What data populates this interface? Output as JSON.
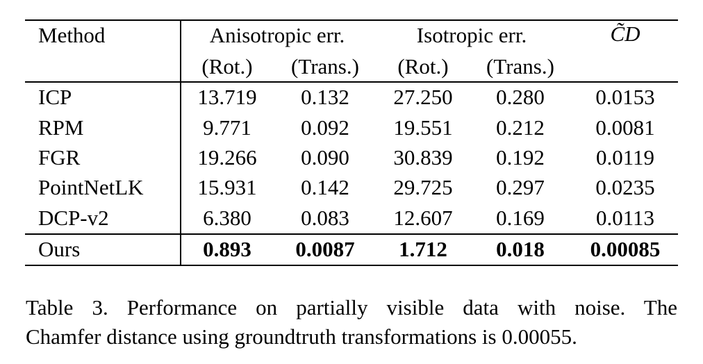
{
  "table": {
    "headers": {
      "method": "Method",
      "anisotropic": "Anisotropic err.",
      "isotropic": "Isotropic err.",
      "cd": "C̃D",
      "rot": "(Rot.)",
      "trans": "(Trans.)"
    },
    "rows": [
      {
        "method": "ICP",
        "aniso_rot": "13.719",
        "aniso_trans": "0.132",
        "iso_rot": "27.250",
        "iso_trans": "0.280",
        "cd": "0.0153"
      },
      {
        "method": "RPM",
        "aniso_rot": "9.771",
        "aniso_trans": "0.092",
        "iso_rot": "19.551",
        "iso_trans": "0.212",
        "cd": "0.0081"
      },
      {
        "method": "FGR",
        "aniso_rot": "19.266",
        "aniso_trans": "0.090",
        "iso_rot": "30.839",
        "iso_trans": "0.192",
        "cd": "0.0119"
      },
      {
        "method": "PointNetLK",
        "aniso_rot": "15.931",
        "aniso_trans": "0.142",
        "iso_rot": "29.725",
        "iso_trans": "0.297",
        "cd": "0.0235"
      },
      {
        "method": "DCP-v2",
        "aniso_rot": "6.380",
        "aniso_trans": "0.083",
        "iso_rot": "12.607",
        "iso_trans": "0.169",
        "cd": "0.0113"
      }
    ],
    "ours": {
      "method": "Ours",
      "aniso_rot": "0.893",
      "aniso_trans": "0.0087",
      "iso_rot": "1.712",
      "iso_trans": "0.018",
      "cd": "0.00085"
    }
  },
  "caption": {
    "line1": "Table 3. Performance on partially visible data with noise.  The",
    "line2": "Chamfer distance using groundtruth transformations is 0.00055."
  }
}
